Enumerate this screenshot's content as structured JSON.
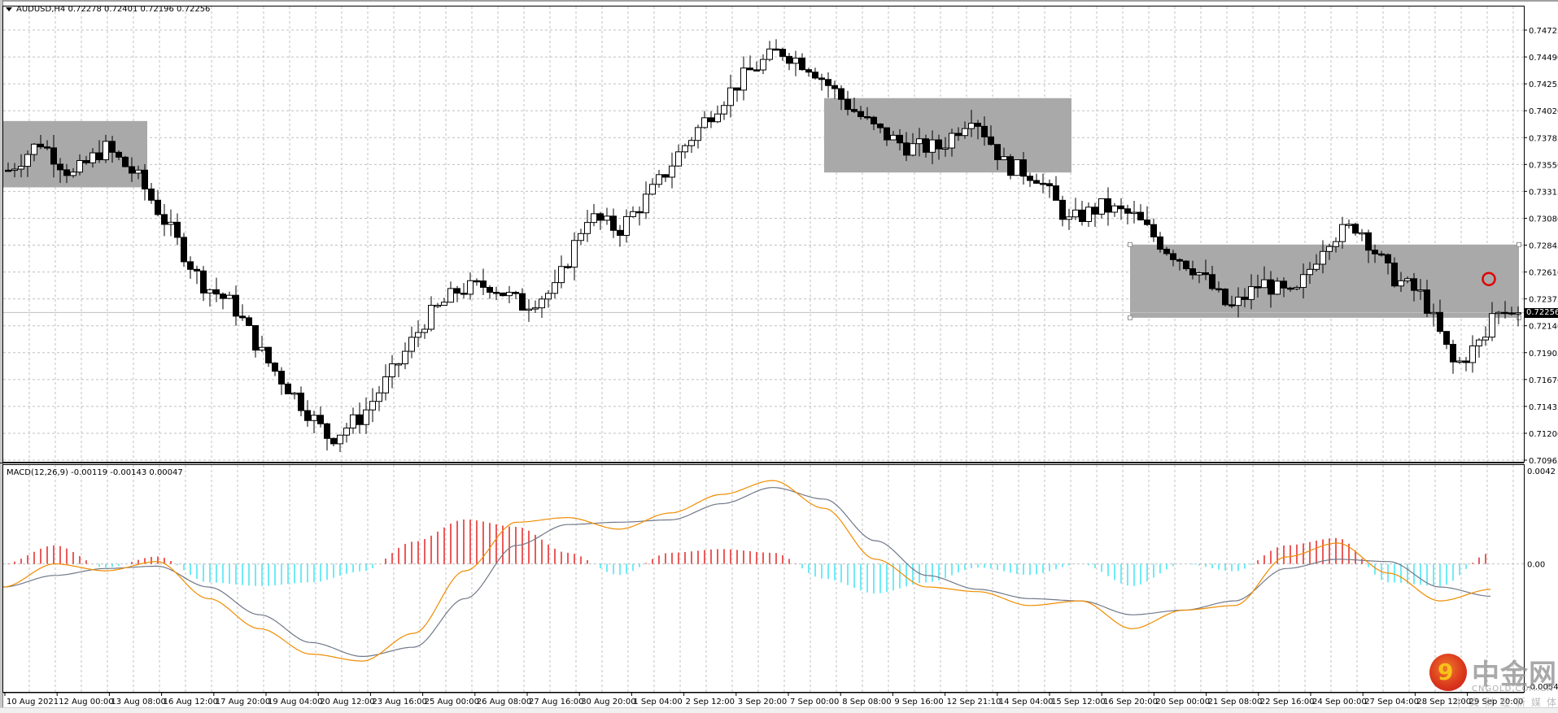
{
  "window": {
    "symbol_header": "AUDUSD,H4  0.72278 0.72401 0.72196 0.72256"
  },
  "price_axis": {
    "labels": [
      "0.74725",
      "0.74490",
      "0.74255",
      "0.74020",
      "0.73785",
      "0.73550",
      "0.73315",
      "0.73080",
      "0.72845",
      "0.72610",
      "0.72375",
      "0.72140",
      "0.71905",
      "0.71670",
      "0.71435",
      "0.71200",
      "0.70965"
    ],
    "current_price": "0.72256"
  },
  "macd": {
    "title": "MACD(12,26,9) -0.00119 -0.00143 0.00047",
    "axis_labels": {
      "top": "0.0042",
      "zero": "0.00",
      "bottom": "-0.00546"
    },
    "colors": {
      "hist_pos": "#e00000",
      "hist_neg": "#22e0f0",
      "macd_line": "#f08c00",
      "signal_line": "#707888"
    }
  },
  "time_axis": {
    "labels": [
      "10 Aug 2021",
      "12 Aug 00:00",
      "13 Aug 08:00",
      "16 Aug 12:00",
      "17 Aug 20:00",
      "19 Aug 04:00",
      "20 Aug 12:00",
      "23 Aug 16:00",
      "25 Aug 00:00",
      "26 Aug 08:00",
      "27 Aug 16:00",
      "30 Aug 20:00",
      "1 Sep 04:00",
      "2 Sep 12:00",
      "3 Sep 20:00",
      "7 Sep 00:00",
      "8 Sep 08:00",
      "9 Sep 16:00",
      "12 Sep 21:10",
      "14 Sep 04:00",
      "15 Sep 12:00",
      "16 Sep 20:00",
      "20 Sep 00:00",
      "21 Sep 08:00",
      "22 Sep 16:00",
      "24 Sep 00:00",
      "27 Sep 04:00",
      "28 Sep 12:00",
      "29 Sep 20:00"
    ]
  },
  "watermark": {
    "brand_cn": "中金网",
    "brand_en": "CNGOLD.COM.CN",
    "tagline": "中文财经新媒体"
  },
  "chart_data": [
    {
      "type": "candlestick",
      "title": "AUDUSD,H4",
      "ohlc_header": {
        "open": 0.72278,
        "high": 0.72401,
        "low": 0.72196,
        "close": 0.72256
      },
      "ylim": [
        0.70965,
        0.74725
      ],
      "y_ticks": [
        0.74725,
        0.7449,
        0.74255,
        0.7402,
        0.73785,
        0.7355,
        0.73315,
        0.7308,
        0.72845,
        0.7261,
        0.72375,
        0.7214,
        0.71905,
        0.7167,
        0.71435,
        0.712,
        0.70965
      ],
      "x_ticks": [
        "10 Aug 2021",
        "12 Aug 00:00",
        "13 Aug 08:00",
        "16 Aug 12:00",
        "17 Aug 20:00",
        "19 Aug 04:00",
        "20 Aug 12:00",
        "23 Aug 16:00",
        "25 Aug 00:00",
        "26 Aug 08:00",
        "27 Aug 16:00",
        "30 Aug 20:00",
        "1 Sep 04:00",
        "2 Sep 12:00",
        "3 Sep 20:00",
        "7 Sep 00:00",
        "8 Sep 08:00",
        "9 Sep 16:00",
        "12 Sep 21:10",
        "14 Sep 04:00",
        "15 Sep 12:00",
        "16 Sep 20:00",
        "20 Sep 00:00",
        "21 Sep 08:00",
        "22 Sep 16:00",
        "24 Sep 00:00",
        "27 Sep 04:00",
        "28 Sep 12:00",
        "29 Sep 20:00"
      ],
      "approx_close_path": [
        {
          "t": "10 Aug 2021",
          "close": 0.735
        },
        {
          "t": "11 Aug",
          "close": 0.7375
        },
        {
          "t": "12 Aug 00:00",
          "close": 0.7345
        },
        {
          "t": "13 Aug 08:00",
          "close": 0.737
        },
        {
          "t": "13 Aug 20:00",
          "close": 0.7345
        },
        {
          "t": "16 Aug 12:00",
          "close": 0.73
        },
        {
          "t": "17 Aug 08:00",
          "close": 0.7252
        },
        {
          "t": "17 Aug 20:00",
          "close": 0.7232
        },
        {
          "t": "18 Aug 12:00",
          "close": 0.7185
        },
        {
          "t": "19 Aug 04:00",
          "close": 0.715
        },
        {
          "t": "19 Aug 20:00",
          "close": 0.7115
        },
        {
          "t": "20 Aug 12:00",
          "close": 0.7135
        },
        {
          "t": "23 Aug 04:00",
          "close": 0.7175
        },
        {
          "t": "23 Aug 16:00",
          "close": 0.722
        },
        {
          "t": "24 Aug 12:00",
          "close": 0.7245
        },
        {
          "t": "25 Aug 00:00",
          "close": 0.725
        },
        {
          "t": "26 Aug 08:00",
          "close": 0.7232
        },
        {
          "t": "27 Aug 04:00",
          "close": 0.7245
        },
        {
          "t": "27 Aug 16:00",
          "close": 0.731
        },
        {
          "t": "30 Aug 20:00",
          "close": 0.7298
        },
        {
          "t": "1 Sep 04:00",
          "close": 0.733
        },
        {
          "t": "1 Sep 20:00",
          "close": 0.737
        },
        {
          "t": "2 Sep 12:00",
          "close": 0.7405
        },
        {
          "t": "3 Sep 04:00",
          "close": 0.7435
        },
        {
          "t": "3 Sep 20:00",
          "close": 0.7455
        },
        {
          "t": "6 Sep 12:00",
          "close": 0.744
        },
        {
          "t": "7 Sep 00:00",
          "close": 0.741
        },
        {
          "t": "7 Sep 16:00",
          "close": 0.7385
        },
        {
          "t": "8 Sep 08:00",
          "close": 0.737
        },
        {
          "t": "9 Sep 16:00",
          "close": 0.737
        },
        {
          "t": "10 Sep 08:00",
          "close": 0.74
        },
        {
          "t": "12 Sep 21:10",
          "close": 0.7355
        },
        {
          "t": "14 Sep 04:00",
          "close": 0.7345
        },
        {
          "t": "14 Sep 20:00",
          "close": 0.7305
        },
        {
          "t": "15 Sep 12:00",
          "close": 0.7318
        },
        {
          "t": "16 Sep 04:00",
          "close": 0.731
        },
        {
          "t": "16 Sep 20:00",
          "close": 0.7282
        },
        {
          "t": "17 Sep 12:00",
          "close": 0.7262
        },
        {
          "t": "20 Sep 00:00",
          "close": 0.7228
        },
        {
          "t": "21 Sep 08:00",
          "close": 0.7252
        },
        {
          "t": "22 Sep 16:00",
          "close": 0.7238
        },
        {
          "t": "23 Sep 12:00",
          "close": 0.729
        },
        {
          "t": "24 Sep 00:00",
          "close": 0.7302
        },
        {
          "t": "27 Sep 04:00",
          "close": 0.7258
        },
        {
          "t": "28 Sep 12:00",
          "close": 0.724
        },
        {
          "t": "29 Sep 04:00",
          "close": 0.7178
        },
        {
          "t": "29 Sep 20:00",
          "close": 0.7205
        },
        {
          "t": "30 Sep 04:00",
          "close": 0.72256
        }
      ],
      "annotations": [
        {
          "type": "rectangle",
          "label": "range box 1",
          "from": "10 Aug 2021",
          "to": "13 Aug 20:00",
          "price_top": 0.7393,
          "price_bottom": 0.7335,
          "color": "#a9a9a9"
        },
        {
          "type": "rectangle",
          "label": "range box 2",
          "from": "7 Sep 16:00",
          "to": "15 Sep 12:00",
          "price_top": 0.7413,
          "price_bottom": 0.7348,
          "color": "#a9a9a9"
        },
        {
          "type": "rectangle",
          "label": "range box 3",
          "from": "17 Sep 12:00",
          "to": "30 Sep 04:00",
          "price_top": 0.7285,
          "price_bottom": 0.7221,
          "color": "#a9a9a9"
        },
        {
          "type": "circle",
          "label": "highlighted wick top",
          "at": "29 Sep 20:00",
          "price": 0.7257,
          "color": "#e00000"
        },
        {
          "type": "hline",
          "label": "bid line",
          "price": 0.72256,
          "color": "#c0c0c0"
        }
      ],
      "grid": true,
      "legend": null
    },
    {
      "type": "bar+line",
      "title": "MACD(12,26,9)",
      "values_header": {
        "macd": -0.00119,
        "signal": -0.00143,
        "histogram": 0.00047
      },
      "ylim": [
        -0.00546,
        0.0042
      ],
      "y_ticks": [
        0.0042,
        0.0,
        -0.00546
      ],
      "series": [
        {
          "name": "MACD",
          "color": "#f08c00",
          "approx_values": [
            -0.001,
            0.0,
            -0.0003,
            0.0001,
            -0.0015,
            -0.0028,
            -0.0039,
            -0.0042,
            -0.003,
            -0.0003,
            0.0018,
            0.002,
            0.0015,
            0.0022,
            0.003,
            0.0036,
            0.0024,
            0.0002,
            -0.001,
            -0.0012,
            -0.0018,
            -0.0016,
            -0.0028,
            -0.002,
            -0.0018,
            0.0003,
            0.0009,
            -0.0004,
            -0.0016,
            -0.0011
          ]
        },
        {
          "name": "Signal",
          "color": "#707888",
          "approx_values": [
            -0.001,
            -0.0005,
            -0.0002,
            -0.0001,
            -0.001,
            -0.0022,
            -0.0034,
            -0.004,
            -0.0036,
            -0.0015,
            0.0008,
            0.0017,
            0.0018,
            0.0019,
            0.0026,
            0.0033,
            0.0028,
            0.001,
            -0.0005,
            -0.0011,
            -0.0015,
            -0.0016,
            -0.0022,
            -0.002,
            -0.0016,
            -0.0002,
            0.0002,
            0.0001,
            -0.001,
            -0.0014
          ]
        },
        {
          "name": "Histogram",
          "colors": {
            "positive": "#e00000",
            "negative": "#22e0f0"
          },
          "approx_peaks": {
            "max_positive": 0.0026,
            "max_negative": -0.0017
          }
        }
      ]
    }
  ]
}
